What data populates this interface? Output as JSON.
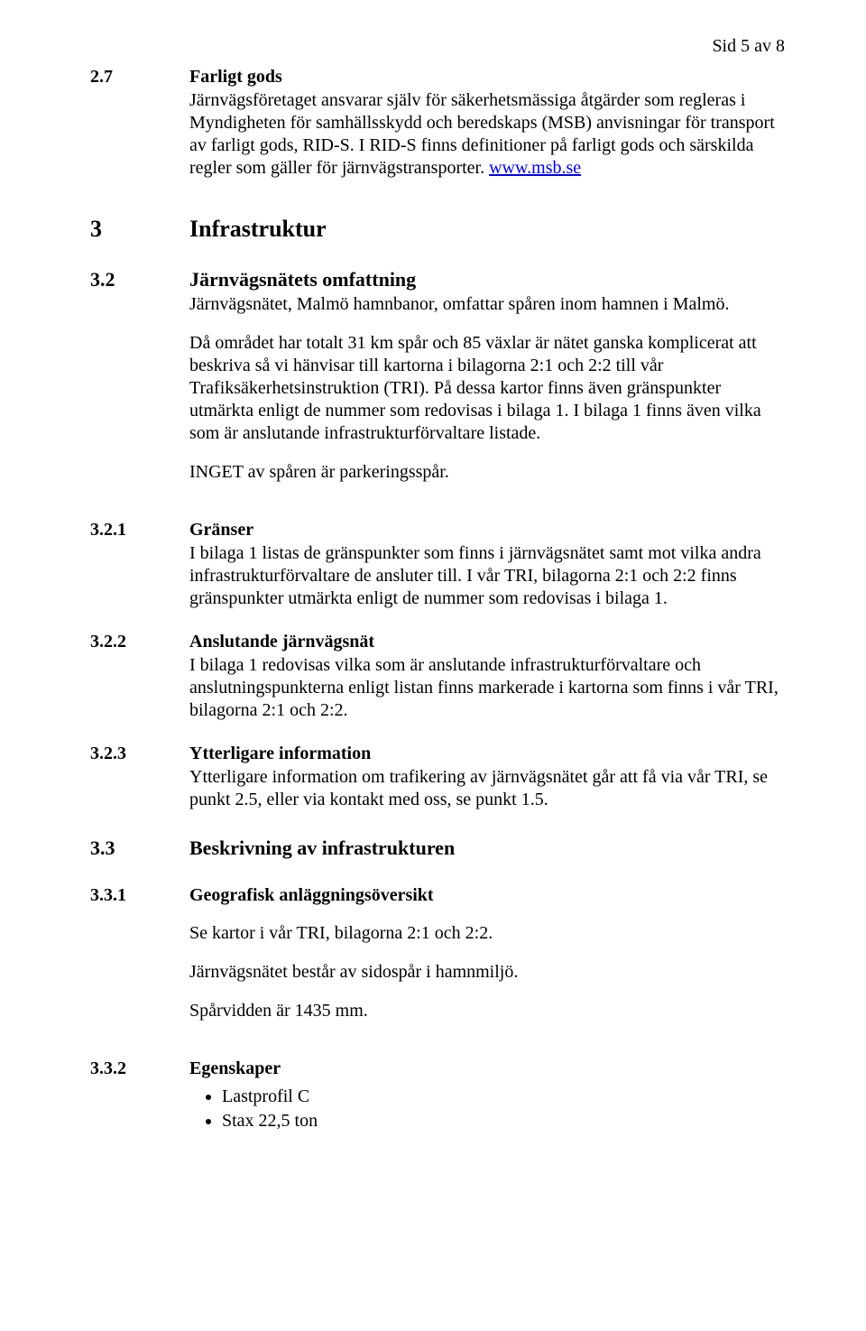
{
  "page_indicator": "Sid 5 av 8",
  "sections": {
    "s27": {
      "num": "2.7",
      "title": "Farligt gods",
      "body1_a": "Järnvägsföretaget ansvarar själv för säkerhetsmässiga åtgärder som regleras i Myndigheten för samhällsskydd och beredskaps (MSB) anvisningar för transport av farligt gods, RID-S. I RID-S finns definitioner på farligt gods och särskilda regler som gäller för järnvägstransporter. ",
      "link": "www.msb.se"
    },
    "s3": {
      "num": "3",
      "title": "Infrastruktur"
    },
    "s32": {
      "num": "3.2",
      "title": "Järnvägsnätets omfattning",
      "body1": "Järnvägsnätet, Malmö hamnbanor, omfattar spåren inom hamnen i Malmö.",
      "body2": "Då området har totalt 31 km spår och 85 växlar är nätet ganska komplicerat att beskriva så vi hänvisar till kartorna i bilagorna 2:1 och 2:2 till vår Trafiksäkerhetsinstruktion (TRI). På dessa kartor finns även gränspunkter utmärkta enligt de nummer som redovisas i bilaga 1. I bilaga 1 finns även vilka som är anslutande infrastrukturförvaltare listade.",
      "body3": "INGET av spåren är parkeringsspår."
    },
    "s321": {
      "num": "3.2.1",
      "title": "Gränser",
      "body1": "I bilaga 1 listas de gränspunkter som finns i järnvägsnätet samt mot vilka andra infrastrukturförvaltare de ansluter till. I vår TRI, bilagorna 2:1 och 2:2 finns gränspunkter utmärkta enligt de nummer som redovisas i bilaga 1."
    },
    "s322": {
      "num": "3.2.2",
      "title": "Anslutande järnvägsnät",
      "body1": "I bilaga 1 redovisas vilka som är anslutande infrastrukturförvaltare och anslutningspunkterna enligt listan finns markerade i kartorna som finns i vår TRI, bilagorna 2:1 och 2:2."
    },
    "s323": {
      "num": "3.2.3",
      "title": "Ytterligare information",
      "body1": "Ytterligare information om trafikering av järnvägsnätet går att få via vår TRI, se punkt 2.5, eller via kontakt med oss, se punkt 1.5."
    },
    "s33": {
      "num": "3.3",
      "title": "Beskrivning av infrastrukturen"
    },
    "s331": {
      "num": "3.3.1",
      "title": "Geografisk anläggningsöversikt",
      "body1": "Se kartor i vår TRI, bilagorna 2:1 och 2:2.",
      "body2": "Järnvägsnätet består av sidospår i hamnmiljö.",
      "body3": "Spårvidden är 1435 mm."
    },
    "s332": {
      "num": "3.3.2",
      "title": "Egenskaper",
      "bullets": [
        "Lastprofil C",
        "Stax 22,5 ton"
      ]
    }
  }
}
